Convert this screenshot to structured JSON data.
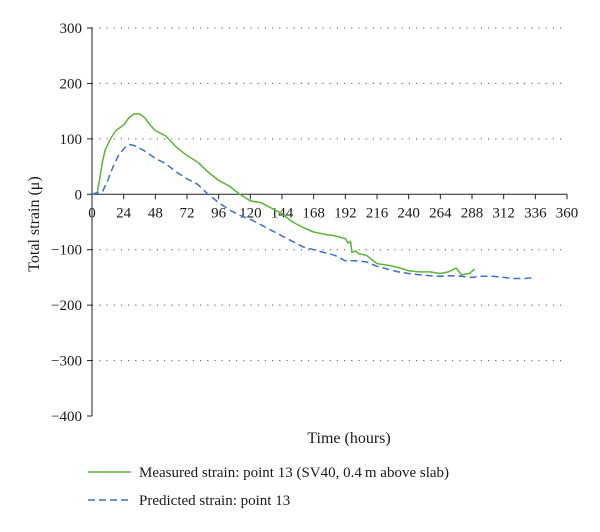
{
  "chart_data": {
    "type": "line",
    "xlabel": "Time (hours)",
    "ylabel": "Total strain (μ)",
    "xlim": [
      0,
      360
    ],
    "ylim": [
      -400,
      300
    ],
    "xticks": [
      0,
      24,
      48,
      72,
      96,
      120,
      144,
      168,
      192,
      216,
      240,
      264,
      288,
      312,
      336,
      360
    ],
    "yticks": [
      300,
      200,
      100,
      0,
      -100,
      -200,
      -300,
      -400
    ],
    "grid": "horizontal dotted",
    "legend_placement": "bottom",
    "series": [
      {
        "name": "Measured strain: point 13 (SV40, 0.4 m above slab)",
        "color": "#5bb535",
        "dash": "solid",
        "points": [
          [
            0,
            0
          ],
          [
            4,
            3
          ],
          [
            6,
            30
          ],
          [
            8,
            60
          ],
          [
            10,
            80
          ],
          [
            14,
            100
          ],
          [
            18,
            115
          ],
          [
            24,
            125
          ],
          [
            28,
            138
          ],
          [
            32,
            145
          ],
          [
            36,
            145
          ],
          [
            40,
            138
          ],
          [
            44,
            125
          ],
          [
            48,
            115
          ],
          [
            56,
            105
          ],
          [
            64,
            85
          ],
          [
            72,
            70
          ],
          [
            80,
            58
          ],
          [
            88,
            40
          ],
          [
            96,
            25
          ],
          [
            104,
            15
          ],
          [
            112,
            0
          ],
          [
            120,
            -12
          ],
          [
            128,
            -15
          ],
          [
            136,
            -25
          ],
          [
            144,
            -35
          ],
          [
            152,
            -50
          ],
          [
            160,
            -60
          ],
          [
            168,
            -68
          ],
          [
            176,
            -72
          ],
          [
            184,
            -75
          ],
          [
            192,
            -80
          ],
          [
            194,
            -88
          ],
          [
            196,
            -85
          ],
          [
            197,
            -105
          ],
          [
            200,
            -102
          ],
          [
            202,
            -107
          ],
          [
            208,
            -110
          ],
          [
            216,
            -125
          ],
          [
            224,
            -128
          ],
          [
            232,
            -132
          ],
          [
            240,
            -138
          ],
          [
            248,
            -140
          ],
          [
            256,
            -140
          ],
          [
            264,
            -143
          ],
          [
            270,
            -140
          ],
          [
            276,
            -133
          ],
          [
            280,
            -145
          ],
          [
            286,
            -143
          ],
          [
            290,
            -135
          ]
        ]
      },
      {
        "name": "Predicted strain: point 13",
        "color": "#3a6fd0",
        "dash": "dashed",
        "points": [
          [
            0,
            0
          ],
          [
            8,
            5
          ],
          [
            12,
            25
          ],
          [
            16,
            50
          ],
          [
            20,
            70
          ],
          [
            24,
            82
          ],
          [
            28,
            90
          ],
          [
            32,
            88
          ],
          [
            40,
            78
          ],
          [
            48,
            65
          ],
          [
            56,
            55
          ],
          [
            64,
            40
          ],
          [
            72,
            28
          ],
          [
            80,
            18
          ],
          [
            88,
            0
          ],
          [
            96,
            -15
          ],
          [
            104,
            -28
          ],
          [
            112,
            -38
          ],
          [
            120,
            -45
          ],
          [
            128,
            -55
          ],
          [
            136,
            -65
          ],
          [
            144,
            -75
          ],
          [
            152,
            -85
          ],
          [
            160,
            -95
          ],
          [
            168,
            -100
          ],
          [
            176,
            -105
          ],
          [
            184,
            -110
          ],
          [
            192,
            -120
          ],
          [
            200,
            -120
          ],
          [
            208,
            -122
          ],
          [
            216,
            -130
          ],
          [
            224,
            -135
          ],
          [
            232,
            -140
          ],
          [
            240,
            -143
          ],
          [
            248,
            -145
          ],
          [
            256,
            -147
          ],
          [
            264,
            -148
          ],
          [
            272,
            -147
          ],
          [
            280,
            -148
          ],
          [
            288,
            -150
          ],
          [
            296,
            -148
          ],
          [
            304,
            -148
          ],
          [
            312,
            -150
          ],
          [
            320,
            -152
          ],
          [
            328,
            -152
          ],
          [
            336,
            -150
          ]
        ]
      }
    ]
  }
}
